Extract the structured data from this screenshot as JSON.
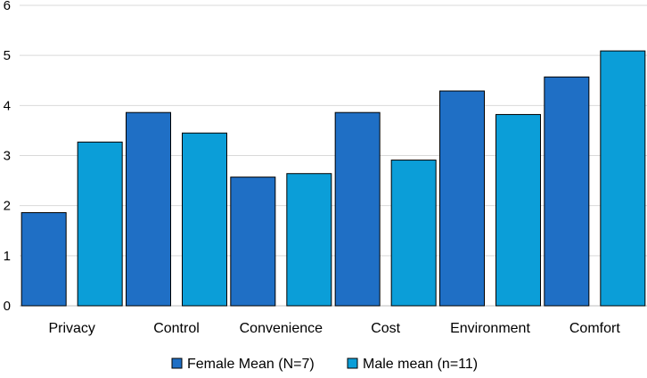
{
  "chart_data": {
    "type": "bar",
    "title": "",
    "xlabel": "",
    "ylabel": "",
    "categories": [
      "Privacy",
      "Control",
      "Convenience",
      "Cost",
      "Environment",
      "Comfort"
    ],
    "series": [
      {
        "name": "Female Mean (N=7)",
        "color": "#1f6fc5",
        "values": [
          1.86,
          3.86,
          2.57,
          3.86,
          4.29,
          4.57
        ]
      },
      {
        "name": "Male mean (n=11)",
        "color": "#0b9ed8",
        "values": [
          3.27,
          3.45,
          2.64,
          2.91,
          3.82,
          5.09
        ]
      }
    ],
    "ylim": [
      0,
      6
    ],
    "yticks": [
      "0",
      "1",
      "2",
      "3",
      "4",
      "5",
      "6"
    ],
    "grid": true,
    "legend_position": "bottom"
  }
}
